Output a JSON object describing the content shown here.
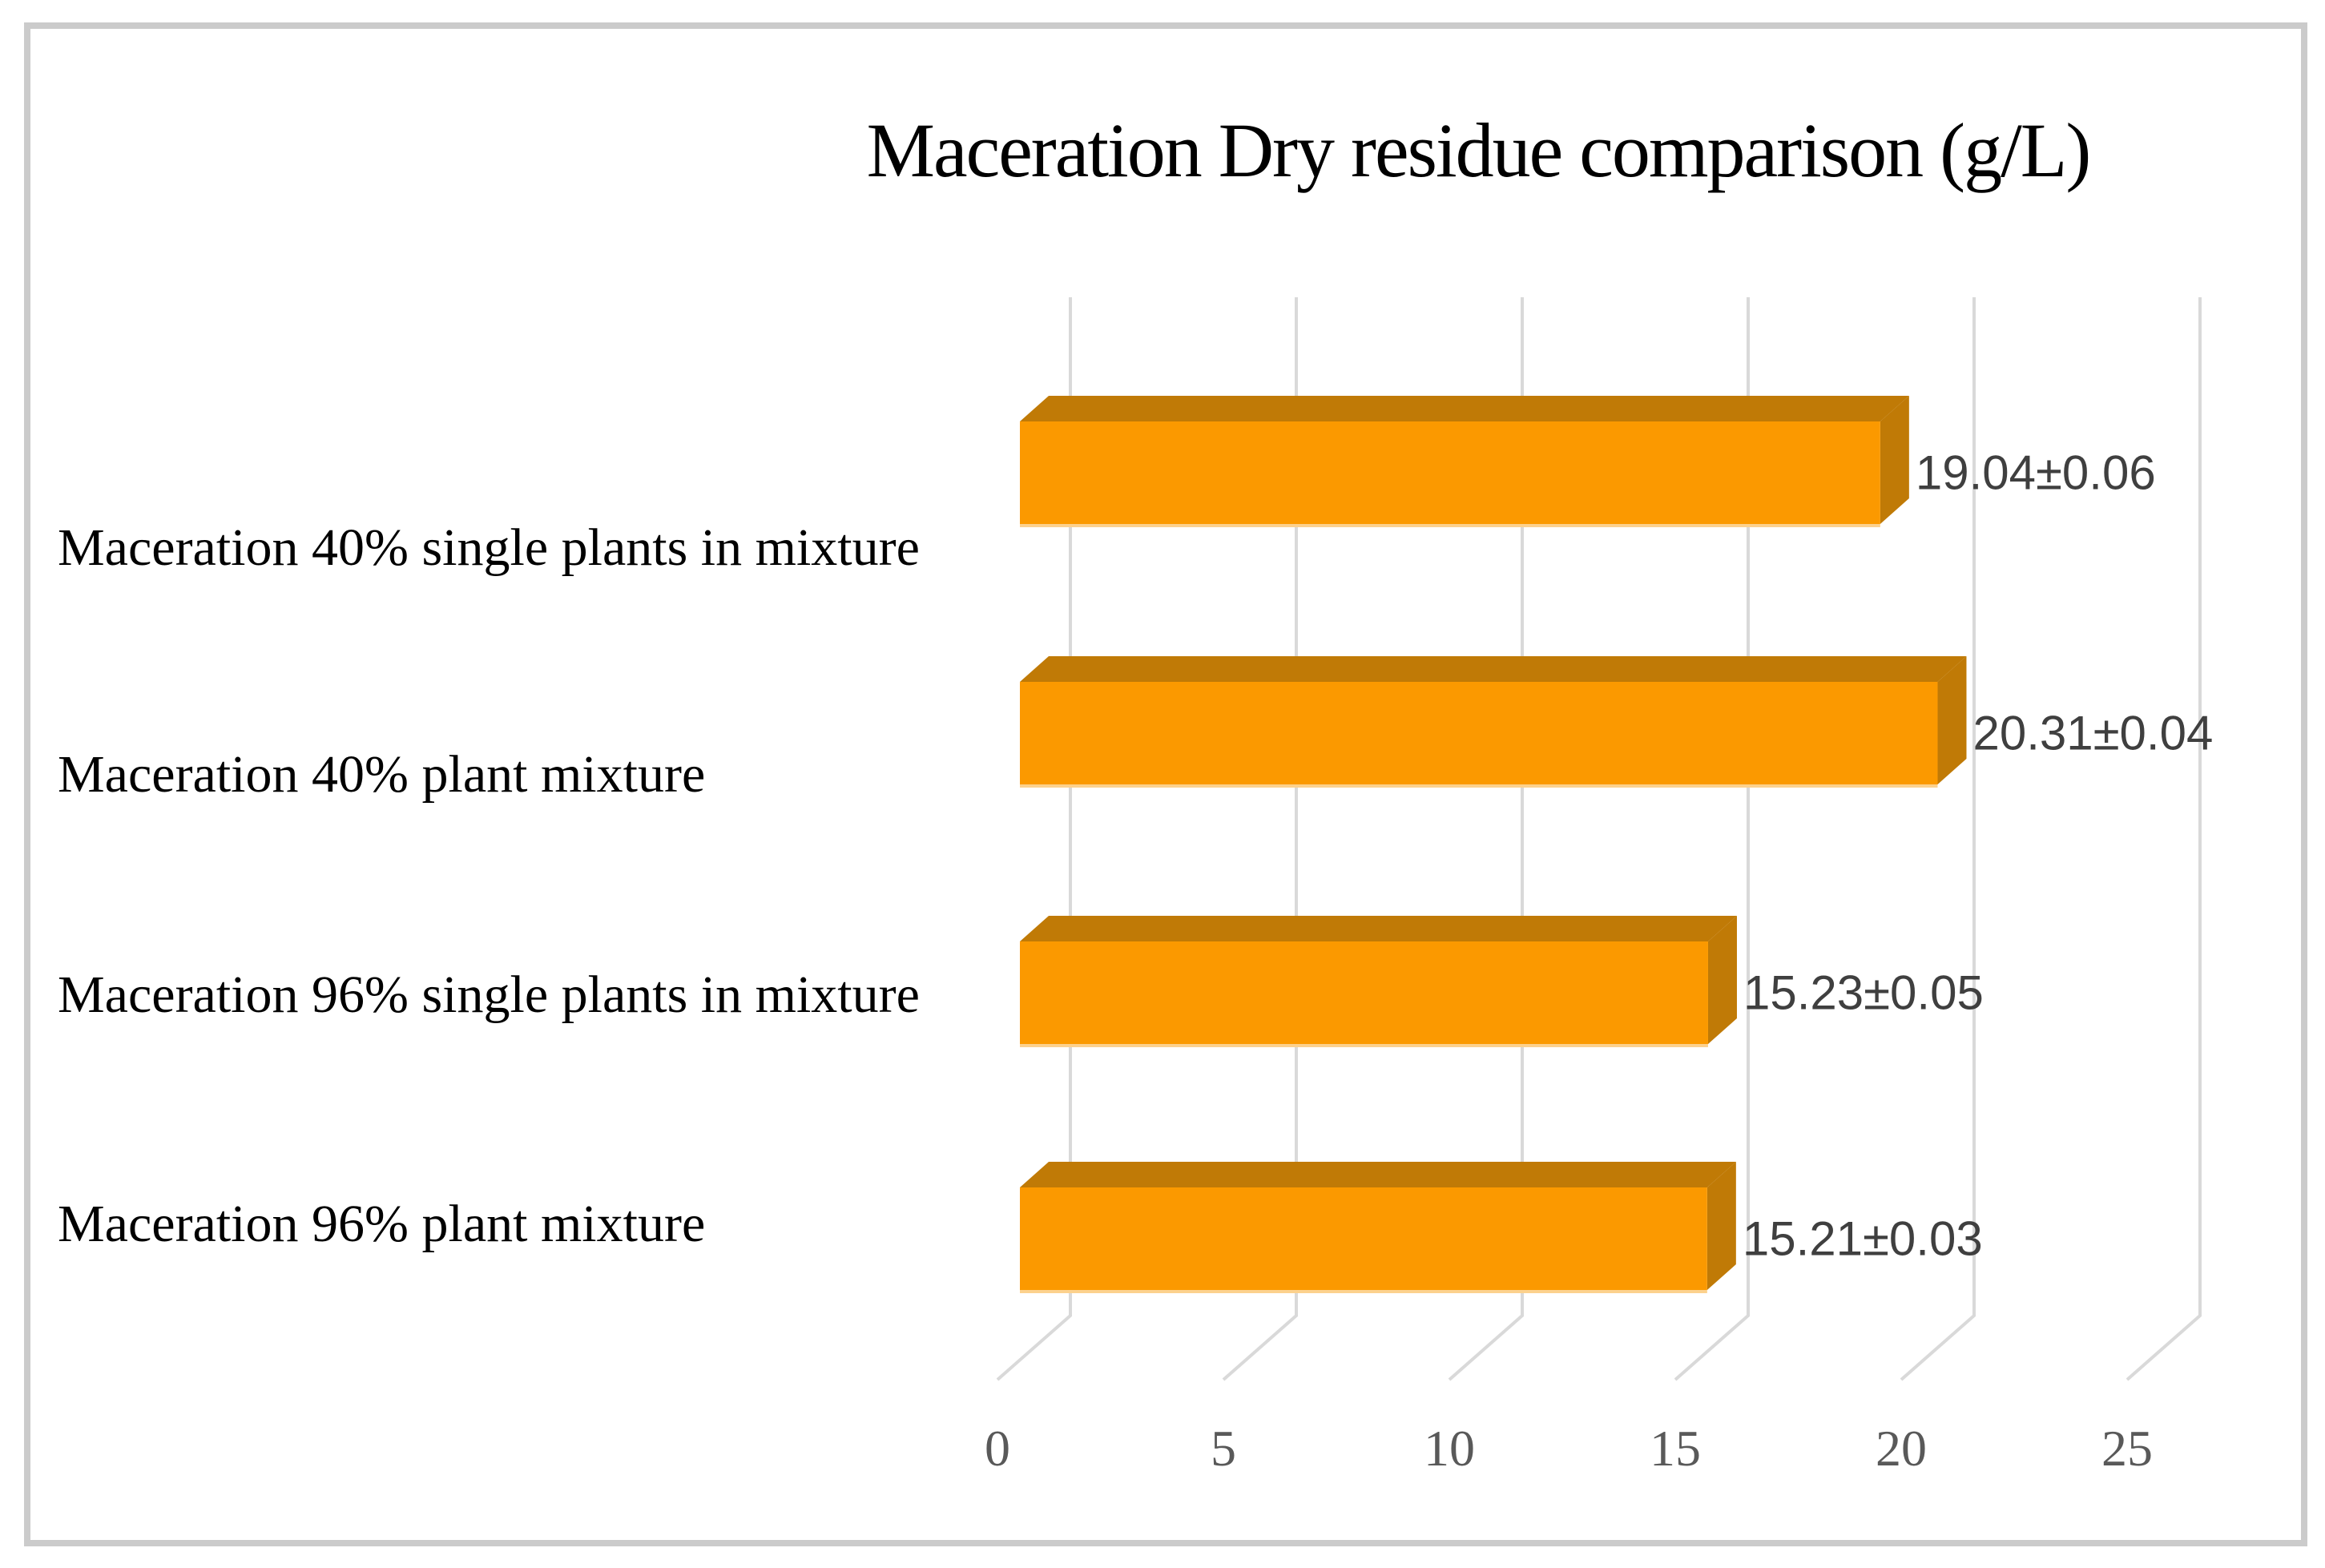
{
  "chart_data": {
    "type": "bar",
    "orientation": "horizontal",
    "style": "3d-extruded",
    "title": "Maceration Dry residue comparison (g/L)",
    "categories": [
      "Maceration 40% single plants in mixture",
      "Maceration 40% plant mixture",
      "Maceration 96% single plants in mixture",
      "Maceration 96% plant mixture"
    ],
    "values": [
      19.04,
      20.31,
      15.23,
      15.21
    ],
    "errors": [
      0.06,
      0.04,
      0.05,
      0.03
    ],
    "data_labels": [
      "19.04±0.06",
      "20.31±0.04",
      "15.23±0.05",
      "15.21±0.03"
    ],
    "x_ticks": [
      "0",
      "5",
      "10",
      "15",
      "20",
      "25"
    ],
    "xlim": [
      0,
      25
    ],
    "grid": true,
    "legend": false,
    "colors": {
      "bar_face": "#FB9900",
      "bar_shade": "#C07A06",
      "bar_bottom_edge": "#FCD18D",
      "gridline": "#D9D9D9",
      "tick_text": "#595959",
      "data_label_text": "#3F3F3F",
      "category_text": "#000000",
      "title_text": "#000000",
      "frame_border": "#CBCBCB",
      "background": "#FFFFFF"
    }
  }
}
